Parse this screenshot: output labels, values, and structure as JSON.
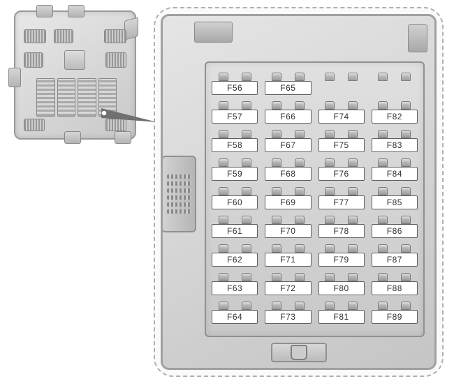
{
  "diagram": {
    "type": "fuse-box-diagram",
    "overview": {
      "label": "body-control-module"
    },
    "fuse_columns": [
      {
        "start_empty": 0,
        "fuses": [
          "F56",
          "F57",
          "F58",
          "F59",
          "F60",
          "F61",
          "F62",
          "F63",
          "F64"
        ]
      },
      {
        "start_empty": 0,
        "fuses": [
          "F65",
          "F66",
          "F67",
          "F68",
          "F69",
          "F70",
          "F71",
          "F72",
          "F73"
        ]
      },
      {
        "start_empty": 1,
        "fuses": [
          "F74",
          "F75",
          "F76",
          "F77",
          "F78",
          "F79",
          "F80",
          "F81"
        ]
      },
      {
        "start_empty": 1,
        "fuses": [
          "F82",
          "F83",
          "F84",
          "F85",
          "F86",
          "F87",
          "F88",
          "F89"
        ]
      }
    ],
    "colors": {
      "panel_bg": "#e5e5e5",
      "border": "#909090",
      "label_bg": "#ffffff",
      "label_border": "#606060",
      "label_text": "#303030"
    },
    "label_fontsize": 12
  }
}
